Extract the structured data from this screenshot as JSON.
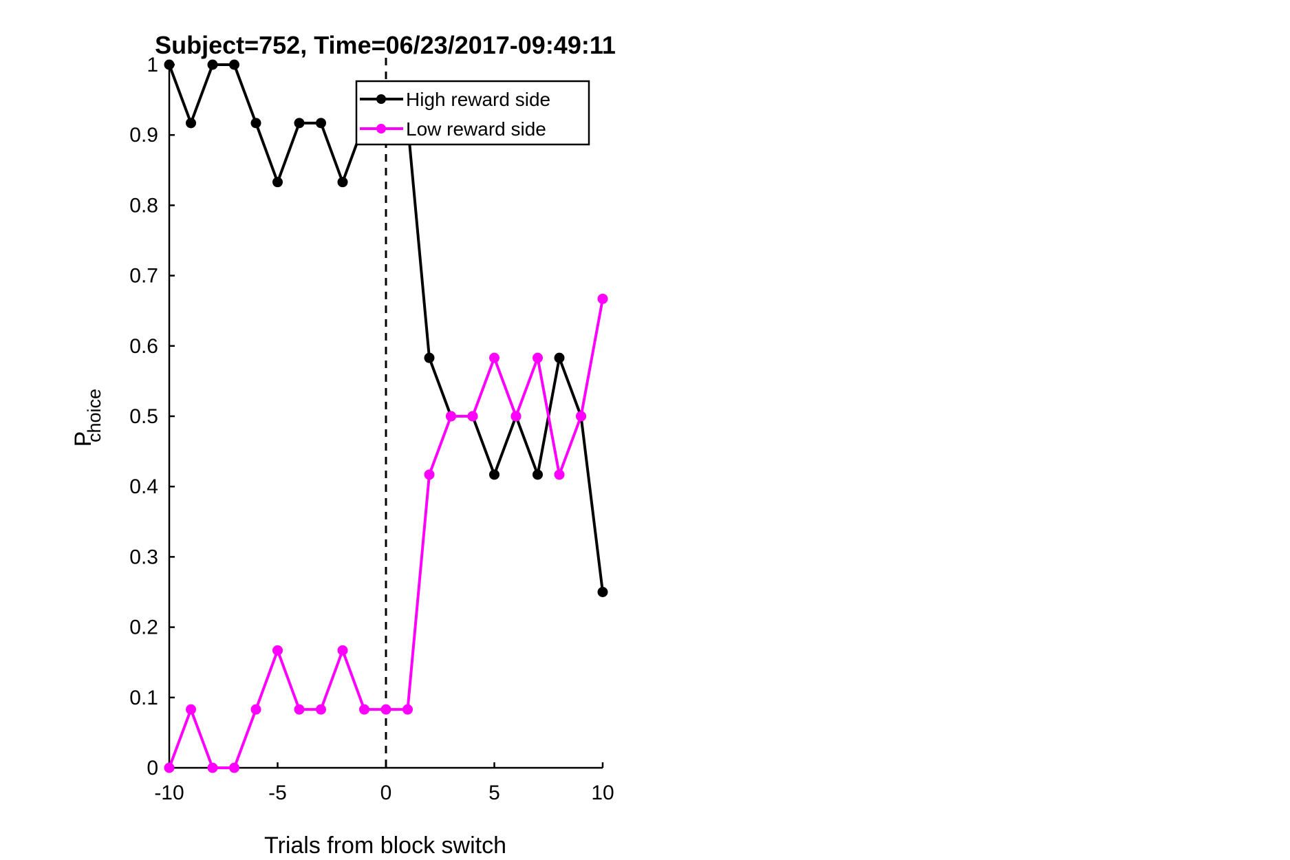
{
  "chart_data": {
    "type": "line",
    "title": "Subject=752, Time=06/23/2017-09:49:11",
    "xlabel": "Trials from block switch",
    "ylabel_main": "P",
    "ylabel_sub": "choice",
    "xlim": [
      -10,
      10
    ],
    "ylim": [
      0,
      1
    ],
    "xticks": [
      -10,
      -5,
      0,
      5,
      10
    ],
    "xtick_labels": [
      "-10",
      "-5",
      "0",
      "5",
      "10"
    ],
    "yticks": [
      0,
      0.1,
      0.2,
      0.3,
      0.4,
      0.5,
      0.6,
      0.7,
      0.8,
      0.9,
      1
    ],
    "ytick_labels": [
      "0",
      "0.1",
      "0.2",
      "0.3",
      "0.4",
      "0.5",
      "0.6",
      "0.7",
      "0.8",
      "0.9",
      "1"
    ],
    "vline_x": 0,
    "legend_position": "top-right",
    "x": [
      -10,
      -9,
      -8,
      -7,
      -6,
      -5,
      -4,
      -3,
      -2,
      -1,
      0,
      1,
      2,
      3,
      4,
      5,
      6,
      7,
      8,
      9,
      10
    ],
    "series": [
      {
        "name": "High reward side",
        "color": "#000000",
        "values": [
          1,
          0.917,
          1,
          1,
          0.917,
          0.833,
          0.917,
          0.917,
          0.833,
          0.917,
          0.917,
          0.917,
          0.583,
          0.5,
          0.5,
          0.417,
          0.5,
          0.417,
          0.583,
          0.5,
          0.25
        ]
      },
      {
        "name": "Low reward side",
        "color": "#ff00ff",
        "values": [
          0,
          0.083,
          0,
          0,
          0.083,
          0.167,
          0.083,
          0.083,
          0.167,
          0.083,
          0.083,
          0.083,
          0.417,
          0.5,
          0.5,
          0.583,
          0.5,
          0.583,
          0.417,
          0.5,
          0.667
        ]
      }
    ]
  }
}
